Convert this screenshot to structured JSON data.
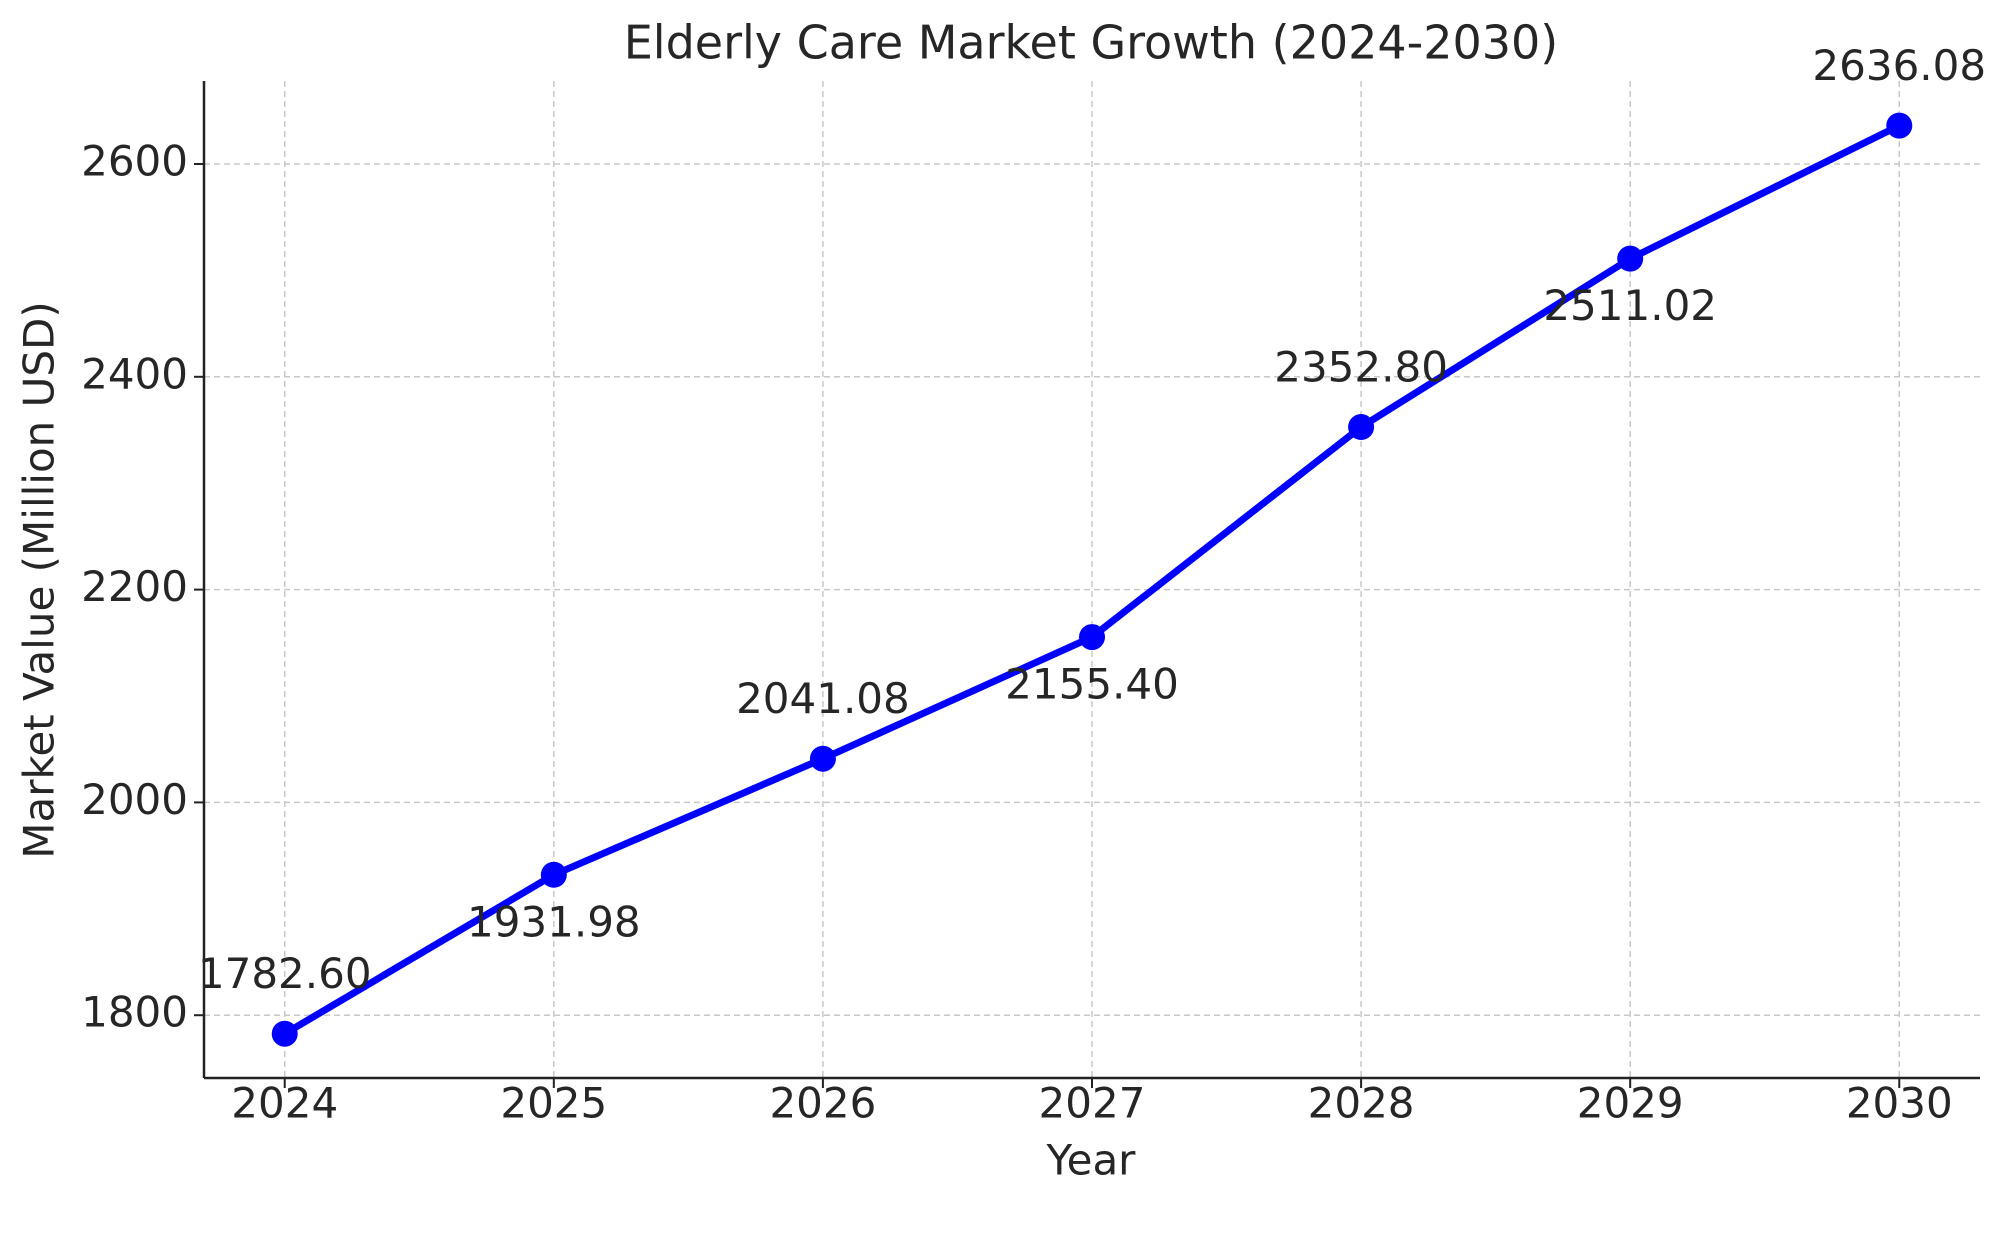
{
  "chart_data": {
    "type": "line",
    "title": "Elderly Care Market Growth (2024-2030)",
    "x_label": "Year",
    "y_label": "Market Value (Million USD)",
    "x": [
      2024,
      2025,
      2026,
      2027,
      2028,
      2029,
      2030
    ],
    "series": [
      {
        "name": "Market Value",
        "color": "#0000ff",
        "values": [
          1782.6,
          1931.98,
          2041.08,
          2155.4,
          2352.8,
          2511.02,
          2636.08
        ],
        "value_labels": [
          "1782.60",
          "1931.98",
          "2041.08",
          "2155.40",
          "2352.80",
          "2511.02",
          "2636.08"
        ]
      }
    ],
    "xlim": [
      2023.7,
      2030.3
    ],
    "xticks": [
      2024,
      2025,
      2026,
      2027,
      2028,
      2029,
      2030
    ],
    "ylim": [
      1741,
      2678
    ],
    "yticks": [
      1800,
      2000,
      2200,
      2400,
      2600
    ],
    "grid": true,
    "legend": false
  }
}
